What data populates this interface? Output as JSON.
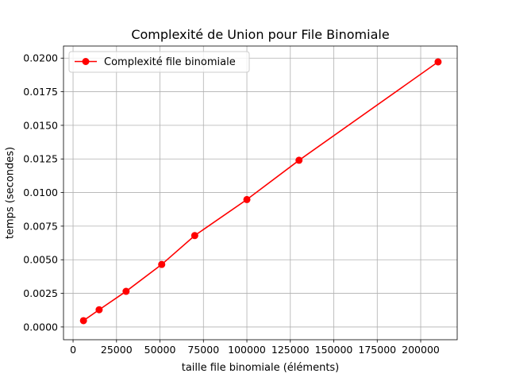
{
  "chart_data": {
    "type": "line",
    "title": "Complexité de Union pour File Binomiale",
    "xlabel": "taille file binomiale (éléments)",
    "ylabel": "temps (secondes)",
    "xlim": [
      -5500,
      221000
    ],
    "ylim": [
      -0.00095,
      0.0209
    ],
    "xticks": [
      0,
      25000,
      50000,
      75000,
      100000,
      125000,
      150000,
      175000,
      200000
    ],
    "xtick_labels": [
      "0",
      "25000",
      "50000",
      "75000",
      "100000",
      "125000",
      "150000",
      "175000",
      "200000"
    ],
    "yticks": [
      0.0,
      0.0025,
      0.005,
      0.0075,
      0.01,
      0.0125,
      0.015,
      0.0175,
      0.02
    ],
    "ytick_labels": [
      "0.0000",
      "0.0025",
      "0.0050",
      "0.0075",
      "0.0100",
      "0.0125",
      "0.0150",
      "0.0175",
      "0.0200"
    ],
    "grid": true,
    "legend_position": "top-left",
    "series": [
      {
        "name": "Complexité file binomiale",
        "color": "#ff0000",
        "x": [
          6000,
          15000,
          30500,
          51000,
          70000,
          100000,
          130000,
          210000
        ],
        "y": [
          0.00047,
          0.00128,
          0.00265,
          0.00465,
          0.0068,
          0.00948,
          0.0124,
          0.01972
        ]
      }
    ]
  }
}
